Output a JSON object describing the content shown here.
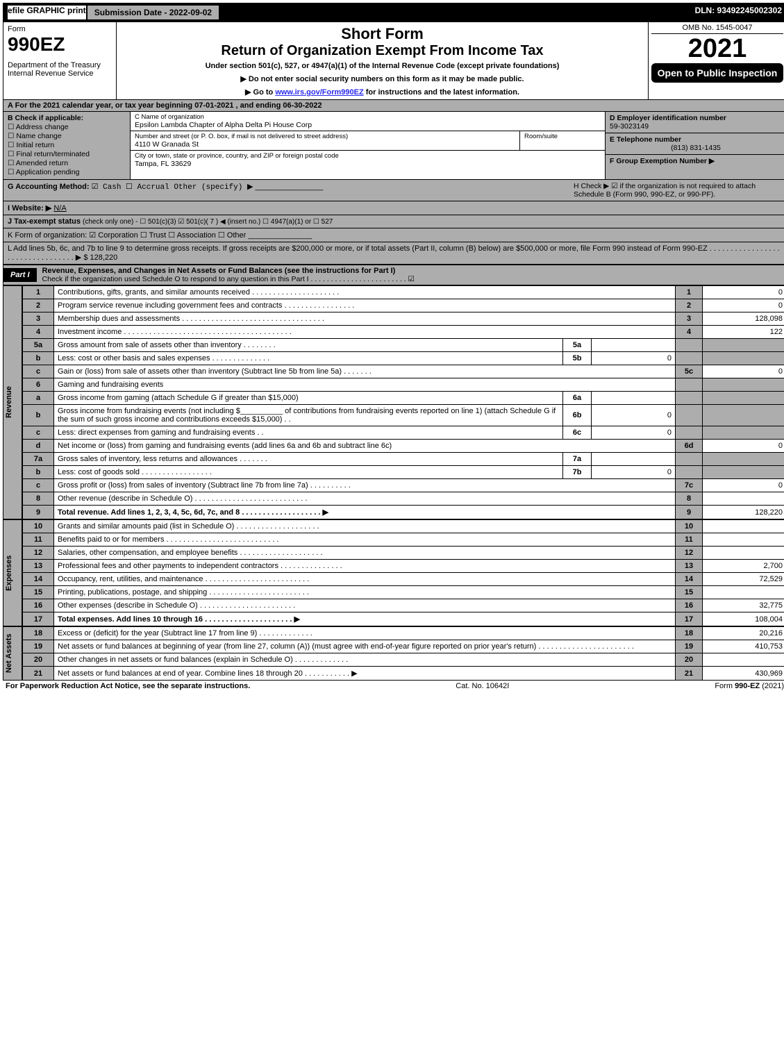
{
  "topbar": {
    "efile": "efile GRAPHIC print",
    "submission_label": "Submission Date - 2022-09-02",
    "dln": "DLN: 93492245002302"
  },
  "header": {
    "form_word": "Form",
    "form_no": "990EZ",
    "dept1": "Department of the Treasury",
    "dept2": "Internal Revenue Service",
    "title1": "Short Form",
    "title2": "Return of Organization Exempt From Income Tax",
    "subtitle": "Under section 501(c), 527, or 4947(a)(1) of the Internal Revenue Code (except private foundations)",
    "note_ssn": "▶ Do not enter social security numbers on this form as it may be made public.",
    "note_goto": "▶ Go to ",
    "irs_link": "www.irs.gov/Form990EZ",
    "note_goto2": " for instructions and the latest information.",
    "omb": "OMB No. 1545-0047",
    "year": "2021",
    "open_public": "Open to Public Inspection"
  },
  "row_a": "A  For the 2021 calendar year, or tax year beginning 07-01-2021 , and ending 06-30-2022",
  "blk_b": {
    "title": "B  Check if applicable:",
    "opts": [
      "Address change",
      "Name change",
      "Initial return",
      "Final return/terminated",
      "Amended return",
      "Application pending"
    ]
  },
  "blk_c": {
    "name_label": "C Name of organization",
    "name": "Epsilon Lambda Chapter of Alpha Delta Pi House Corp",
    "street_label": "Number and street (or P. O. box, if mail is not delivered to street address)",
    "street": "4110 W Granada St",
    "room_label": "Room/suite",
    "room": "",
    "city_label": "City or town, state or province, country, and ZIP or foreign postal code",
    "city": "Tampa, FL  33629"
  },
  "blk_def": {
    "d_label": "D Employer identification number",
    "d_val": "59-3023149",
    "e_label": "E Telephone number",
    "e_val": "(813) 831-1435",
    "f_label": "F Group Exemption Number  ▶",
    "f_val": ""
  },
  "gh": {
    "g_label": "G Accounting Method:",
    "g_opts": "☑ Cash  ☐ Accrual   Other (specify) ▶",
    "h_text": "H  Check ▶ ☑ if the organization is not required to attach Schedule B (Form 990, 990-EZ, or 990-PF)."
  },
  "i": {
    "label": "I Website: ▶",
    "val": "N/A"
  },
  "j": {
    "label": "J Tax-exempt status",
    "rest": " (check only one) - ☐ 501(c)(3)  ☑ 501(c)( 7 ) ◀ (insert no.)  ☐ 4947(a)(1) or  ☐ 527"
  },
  "k": "K Form of organization:   ☑ Corporation   ☐ Trust   ☐ Association   ☐ Other",
  "l": {
    "text": "L Add lines 5b, 6c, and 7b to line 9 to determine gross receipts. If gross receipts are $200,000 or more, or if total assets (Part II, column (B) below) are $500,000 or more, file Form 990 instead of Form 990-EZ  . . . . . . . . . . . . . . . . . . . . . . . . . . . . . . . . .  ▶ $ ",
    "amt": "128,220"
  },
  "part1": {
    "tag": "Part I",
    "title": "Revenue, Expenses, and Changes in Net Assets or Fund Balances (see the instructions for Part I)",
    "check_line": "Check if the organization used Schedule O to respond to any question in this Part I . . . . . . . . . . . . . . . . . . . . . . . .  ☑"
  },
  "vert_labels": {
    "rev": "Revenue",
    "exp": "Expenses",
    "net": "Net Assets"
  },
  "revenue": [
    {
      "n": "1",
      "desc": "Contributions, gifts, grants, and similar amounts received . . . . . . . . . . . . . . . . . . . . .",
      "rn": "1",
      "amt": "0"
    },
    {
      "n": "2",
      "desc": "Program service revenue including government fees and contracts . . . . . . . . . . . . . . . . .",
      "rn": "2",
      "amt": "0"
    },
    {
      "n": "3",
      "desc": "Membership dues and assessments . . . . . . . . . . . . . . . . . . . . . . . . . . . . . . . . . .",
      "rn": "3",
      "amt": "128,098"
    },
    {
      "n": "4",
      "desc": "Investment income . . . . . . . . . . . . . . . . . . . . . . . . . . . . . . . . . . . . . . . .",
      "rn": "4",
      "amt": "122"
    }
  ],
  "line5": {
    "a": {
      "n": "5a",
      "desc": "Gross amount from sale of assets other than inventory . . . . . . . .",
      "sl": "5a",
      "sv": ""
    },
    "b": {
      "n": "b",
      "desc": "Less: cost or other basis and sales expenses . . . . . . . . . . . . . .",
      "sl": "5b",
      "sv": "0"
    },
    "c": {
      "n": "c",
      "desc": "Gain or (loss) from sale of assets other than inventory (Subtract line 5b from line 5a) . . . . . . .",
      "rn": "5c",
      "amt": "0"
    }
  },
  "line6": {
    "hdr": {
      "n": "6",
      "desc": "Gaming and fundraising events"
    },
    "a": {
      "n": "a",
      "desc": "Gross income from gaming (attach Schedule G if greater than $15,000)",
      "sl": "6a",
      "sv": ""
    },
    "b": {
      "n": "b",
      "desc1": "Gross income from fundraising events (not including $",
      "desc2": " of contributions from fundraising events reported on line 1) (attach Schedule G if the sum of such gross income and contributions exceeds $15,000)    . .",
      "sl": "6b",
      "sv": "0"
    },
    "c": {
      "n": "c",
      "desc": "Less: direct expenses from gaming and fundraising events   . .",
      "sl": "6c",
      "sv": "0"
    },
    "d": {
      "n": "d",
      "desc": "Net income or (loss) from gaming and fundraising events (add lines 6a and 6b and subtract line 6c)",
      "rn": "6d",
      "amt": "0"
    }
  },
  "line7": {
    "a": {
      "n": "7a",
      "desc": "Gross sales of inventory, less returns and allowances . . . . . . .",
      "sl": "7a",
      "sv": ""
    },
    "b": {
      "n": "b",
      "desc": "Less: cost of goods sold       . . . . . . . . . . . . . . . . .",
      "sl": "7b",
      "sv": "0"
    },
    "c": {
      "n": "c",
      "desc": "Gross profit or (loss) from sales of inventory (Subtract line 7b from line 7a) . . . . . . . . . .",
      "rn": "7c",
      "amt": "0"
    }
  },
  "line8": {
    "n": "8",
    "desc": "Other revenue (describe in Schedule O) . . . . . . . . . . . . . . . . . . . . . . . . . . .",
    "rn": "8",
    "amt": ""
  },
  "line9": {
    "n": "9",
    "desc": "Total revenue. Add lines 1, 2, 3, 4, 5c, 6d, 7c, and 8  . . . . . . . . . . . . . . . . . . .  ▶",
    "rn": "9",
    "amt": "128,220"
  },
  "expenses": [
    {
      "n": "10",
      "desc": "Grants and similar amounts paid (list in Schedule O) . . . . . . . . . . . . . . . . . . . .",
      "rn": "10",
      "amt": ""
    },
    {
      "n": "11",
      "desc": "Benefits paid to or for members    . . . . . . . . . . . . . . . . . . . . . . . . . . .",
      "rn": "11",
      "amt": ""
    },
    {
      "n": "12",
      "desc": "Salaries, other compensation, and employee benefits . . . . . . . . . . . . . . . . . . . .",
      "rn": "12",
      "amt": ""
    },
    {
      "n": "13",
      "desc": "Professional fees and other payments to independent contractors . . . . . . . . . . . . . . .",
      "rn": "13",
      "amt": "2,700"
    },
    {
      "n": "14",
      "desc": "Occupancy, rent, utilities, and maintenance . . . . . . . . . . . . . . . . . . . . . . . . .",
      "rn": "14",
      "amt": "72,529"
    },
    {
      "n": "15",
      "desc": "Printing, publications, postage, and shipping . . . . . . . . . . . . . . . . . . . . . . . .",
      "rn": "15",
      "amt": ""
    },
    {
      "n": "16",
      "desc": "Other expenses (describe in Schedule O)    . . . . . . . . . . . . . . . . . . . . . . .",
      "rn": "16",
      "amt": "32,775"
    },
    {
      "n": "17",
      "desc": "Total expenses. Add lines 10 through 16    . . . . . . . . . . . . . . . . . . . . .  ▶",
      "rn": "17",
      "amt": "108,004"
    }
  ],
  "netassets": [
    {
      "n": "18",
      "desc": "Excess or (deficit) for the year (Subtract line 17 from line 9)       . . . . . . . . . . . . .",
      "rn": "18",
      "amt": "20,216"
    },
    {
      "n": "19",
      "desc": "Net assets or fund balances at beginning of year (from line 27, column (A)) (must agree with end-of-year figure reported on prior year's return) . . . . . . . . . . . . . . . . . . . . . . .",
      "rn": "19",
      "amt": "410,753"
    },
    {
      "n": "20",
      "desc": "Other changes in net assets or fund balances (explain in Schedule O) . . . . . . . . . . . . .",
      "rn": "20",
      "amt": ""
    },
    {
      "n": "21",
      "desc": "Net assets or fund balances at end of year. Combine lines 18 through 20 . . . . . . . . . . .  ▶",
      "rn": "21",
      "amt": "430,969"
    }
  ],
  "footer": {
    "left": "For Paperwork Reduction Act Notice, see the separate instructions.",
    "mid": "Cat. No. 10642I",
    "right": "Form 990-EZ (2021)"
  }
}
